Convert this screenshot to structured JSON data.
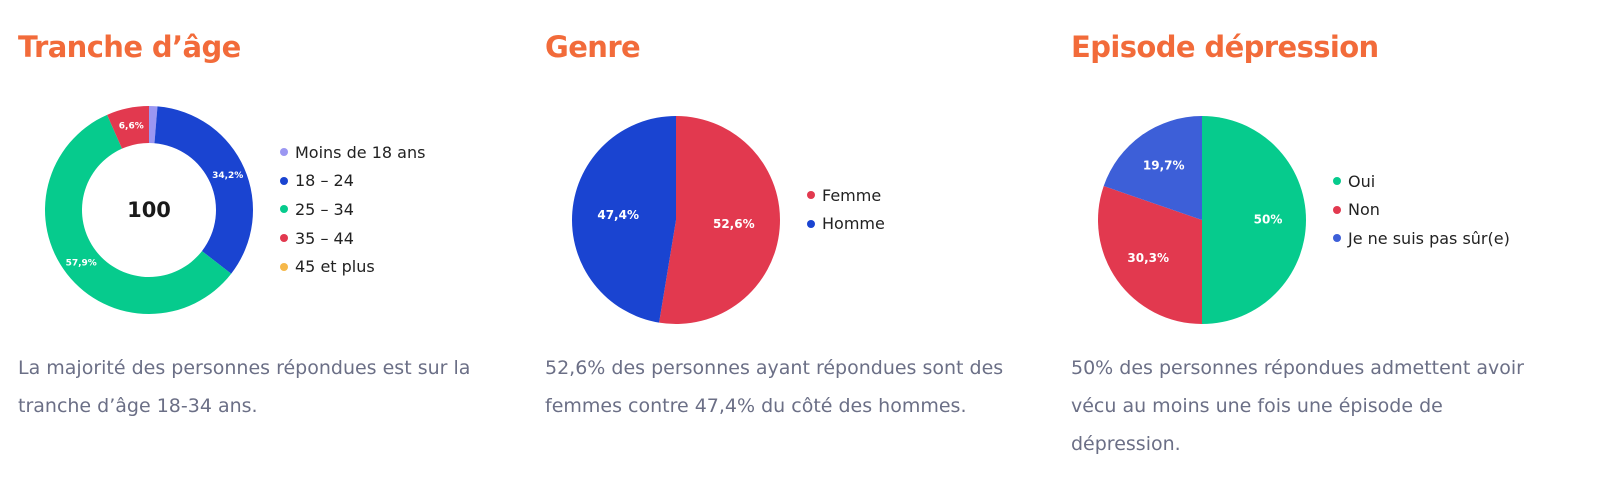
{
  "chart_data": [
    {
      "type": "pie",
      "variant": "donut",
      "title": "Tranche d’âge",
      "center_label": "100",
      "categories": [
        "Moins de 18 ans",
        "18 – 24",
        "25 – 34",
        "35 – 44",
        "45 et plus"
      ],
      "values": [
        1.3,
        34.2,
        57.9,
        6.6,
        0
      ],
      "value_labels": [
        "",
        "34,2%",
        "57,9%",
        "6,6%",
        ""
      ],
      "colors": [
        "#9b97f2",
        "#1a44d1",
        "#06cb8d",
        "#e2394f",
        "#f6b84a"
      ],
      "legend_position": "right",
      "description": "La majorité des personnes répondues est sur la tranche d’âge 18-34 ans."
    },
    {
      "type": "pie",
      "title": "Genre",
      "categories": [
        "Femme",
        "Homme"
      ],
      "values": [
        52.6,
        47.4
      ],
      "value_labels": [
        "52,6%",
        "47,4%"
      ],
      "colors": [
        "#e2394f",
        "#1a44d1"
      ],
      "legend_position": "right",
      "description": "52,6% des personnes ayant répondues sont des femmes contre 47,4% du côté des hommes."
    },
    {
      "type": "pie",
      "title": "Episode dépression",
      "categories": [
        "Oui",
        "Non",
        "Je ne suis pas sûr(e)"
      ],
      "values": [
        50,
        30.3,
        19.7
      ],
      "value_labels": [
        "50%",
        "30,3%",
        "19,7%"
      ],
      "colors": [
        "#06cb8d",
        "#e2394f",
        "#3d5fd8"
      ],
      "legend_position": "right",
      "description": "50% des personnes répondues admettent avoir vécu au moins une fois une épisode de dépression."
    }
  ]
}
